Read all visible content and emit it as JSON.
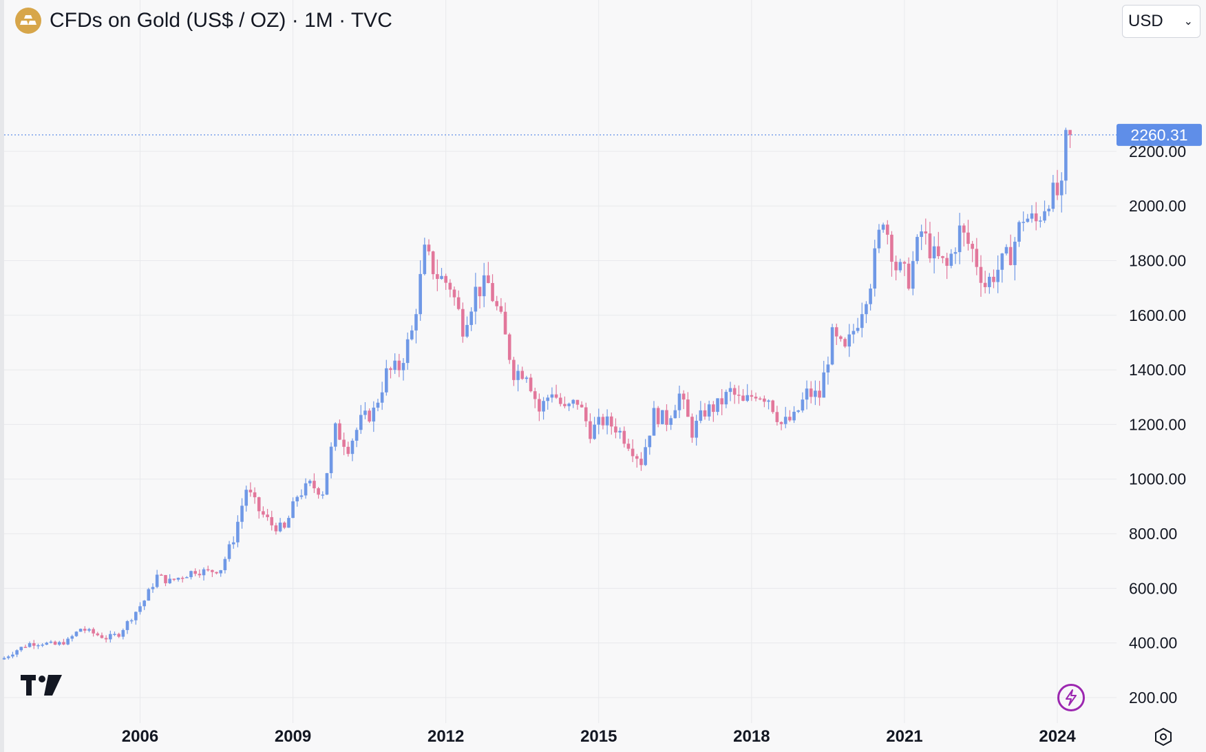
{
  "header": {
    "title": "CFDs on Gold (US$ / OZ) · 1M · TVC",
    "logo_icon": "gold-bars-icon"
  },
  "currency": {
    "selected": "USD"
  },
  "colors": {
    "up": "#6f98e6",
    "down": "#e2779b",
    "background": "#f8f8f9",
    "grid": "#e8e9ec",
    "last_price_badge": "#5f8ee8",
    "accent_purple": "#9c27b0"
  },
  "chart_data": {
    "type": "candlestick",
    "title": "CFDs on Gold (US$ / OZ) · 1M · TVC",
    "symbol": "CFDs on Gold (US$ / OZ)",
    "interval": "1M",
    "exchange": "TVC",
    "currency": "USD",
    "xlabel": "",
    "ylabel": "",
    "x_ticks": [
      "2006",
      "2009",
      "2012",
      "2015",
      "2018",
      "2021",
      "2024"
    ],
    "y_ticks": [
      "200.00",
      "400.00",
      "600.00",
      "800.00",
      "1000.00",
      "1200.00",
      "1400.00",
      "1600.00",
      "1800.00",
      "2000.00",
      "2200.00"
    ],
    "ylim": [
      200,
      2260.31
    ],
    "xlim": [
      "2003-05",
      "2024-04"
    ],
    "grid": true,
    "legend": "none",
    "last_price": 2260.31,
    "monthly_close": [
      [
        "2003-05",
        345
      ],
      [
        "2003-08",
        375
      ],
      [
        "2003-11",
        398
      ],
      [
        "2004-02",
        400
      ],
      [
        "2004-05",
        393
      ],
      [
        "2004-08",
        408
      ],
      [
        "2004-11",
        453
      ],
      [
        "2005-02",
        435
      ],
      [
        "2005-05",
        418
      ],
      [
        "2005-08",
        433
      ],
      [
        "2005-11",
        495
      ],
      [
        "2006-02",
        556
      ],
      [
        "2006-05",
        645
      ],
      [
        "2006-08",
        625
      ],
      [
        "2006-11",
        646
      ],
      [
        "2007-02",
        666
      ],
      [
        "2007-05",
        660
      ],
      [
        "2007-08",
        673
      ],
      [
        "2007-11",
        783
      ],
      [
        "2008-02",
        965
      ],
      [
        "2008-05",
        885
      ],
      [
        "2008-08",
        833
      ],
      [
        "2008-11",
        815
      ],
      [
        "2009-02",
        940
      ],
      [
        "2009-05",
        978
      ],
      [
        "2009-08",
        955
      ],
      [
        "2009-11",
        1181
      ],
      [
        "2010-02",
        1118
      ],
      [
        "2010-05",
        1212
      ],
      [
        "2010-08",
        1248
      ],
      [
        "2010-11",
        1386
      ],
      [
        "2011-02",
        1410
      ],
      [
        "2011-05",
        1536
      ],
      [
        "2011-08",
        1826
      ],
      [
        "2011-11",
        1746
      ],
      [
        "2012-02",
        1710
      ],
      [
        "2012-05",
        1560
      ],
      [
        "2012-08",
        1690
      ],
      [
        "2012-11",
        1712
      ],
      [
        "2013-02",
        1578
      ],
      [
        "2013-05",
        1393
      ],
      [
        "2013-08",
        1396
      ],
      [
        "2013-11",
        1250
      ],
      [
        "2014-02",
        1326
      ],
      [
        "2014-05",
        1250
      ],
      [
        "2014-08",
        1286
      ],
      [
        "2014-11",
        1175
      ],
      [
        "2015-02",
        1213
      ],
      [
        "2015-05",
        1190
      ],
      [
        "2015-08",
        1134
      ],
      [
        "2015-11",
        1065
      ],
      [
        "2016-02",
        1238
      ],
      [
        "2016-05",
        1215
      ],
      [
        "2016-08",
        1309
      ],
      [
        "2016-11",
        1173
      ],
      [
        "2017-02",
        1249
      ],
      [
        "2017-05",
        1268
      ],
      [
        "2017-08",
        1320
      ],
      [
        "2017-11",
        1275
      ],
      [
        "2018-02",
        1318
      ],
      [
        "2018-05",
        1298
      ],
      [
        "2018-08",
        1201
      ],
      [
        "2018-11",
        1222
      ],
      [
        "2019-02",
        1313
      ],
      [
        "2019-05",
        1305
      ],
      [
        "2019-08",
        1520
      ],
      [
        "2019-11",
        1464
      ],
      [
        "2020-02",
        1585
      ],
      [
        "2020-05",
        1730
      ],
      [
        "2020-08",
        1968
      ],
      [
        "2020-11",
        1777
      ],
      [
        "2021-02",
        1734
      ],
      [
        "2021-05",
        1906
      ],
      [
        "2021-08",
        1814
      ],
      [
        "2021-11",
        1774
      ],
      [
        "2022-02",
        1909
      ],
      [
        "2022-05",
        1837
      ],
      [
        "2022-08",
        1711
      ],
      [
        "2022-11",
        1769
      ],
      [
        "2023-02",
        1827
      ],
      [
        "2023-05",
        1962
      ],
      [
        "2023-08",
        1940
      ],
      [
        "2023-11",
        2037
      ],
      [
        "2024-02",
        2044
      ],
      [
        "2024-03",
        2233
      ],
      [
        "2024-04",
        2260.31
      ]
    ]
  },
  "footer": {
    "brand_logo": "tradingview-logo",
    "flash_icon": "lightning-icon",
    "settings_icon": "settings-hexagon-icon"
  }
}
